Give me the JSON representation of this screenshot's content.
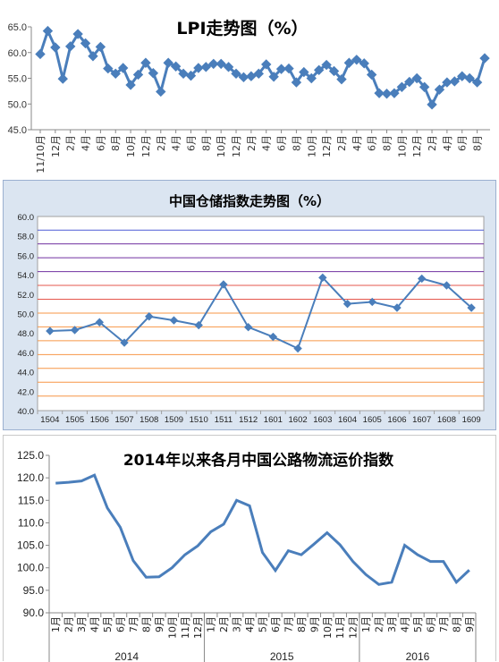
{
  "chart_data": [
    {
      "type": "line",
      "title": "LPI走势图（%）",
      "xlabel": "",
      "ylabel": "",
      "ylim": [
        45.0,
        65.0
      ],
      "yticks": [
        "45.0",
        "50.0",
        "55.0",
        "60.0",
        "65.0"
      ],
      "grid": false,
      "legend": "none",
      "x_tick_labels": [
        "11/10月",
        "12月",
        "2月",
        "4月",
        "6月",
        "8月",
        "10月",
        "12月",
        "2月",
        "4月",
        "6月",
        "8月",
        "10月",
        "12月",
        "2月",
        "4月",
        "6月",
        "8月",
        "10月",
        "12月",
        "2月",
        "4月",
        "6月",
        "8月",
        "10月",
        "12月",
        "2月",
        "4月",
        "6月",
        "8月"
      ],
      "series": [
        {
          "color": "#4a7ebb",
          "marker": "diamond",
          "values": [
            59.7,
            64.2,
            61.0,
            54.9,
            61.2,
            63.6,
            61.8,
            59.3,
            61.1,
            56.9,
            55.9,
            57.0,
            53.7,
            55.7,
            58.0,
            56.0,
            52.4,
            58.0,
            57.3,
            55.9,
            55.5,
            57.0,
            57.2,
            57.8,
            57.8,
            57.2,
            55.9,
            55.2,
            55.4,
            55.9,
            57.7,
            55.3,
            56.8,
            56.9,
            54.2,
            56.2,
            55.0,
            56.6,
            57.6,
            56.4,
            54.8,
            58.0,
            58.6,
            57.9,
            55.7,
            52.1,
            52.0,
            52.1,
            53.3,
            54.3,
            55.0,
            53.3,
            49.9,
            52.8,
            54.2,
            54.4,
            55.4,
            55.0,
            54.2,
            58.9
          ]
        }
      ]
    },
    {
      "type": "line",
      "title": "中国仓储指数走势图（%）",
      "xlabel": "",
      "ylabel": "",
      "ylim": [
        40.0,
        60.0
      ],
      "yticks": [
        "40.0",
        "42.0",
        "44.0",
        "46.0",
        "48.0",
        "50.0",
        "52.0",
        "54.0",
        "56.0",
        "58.0",
        "60.0"
      ],
      "grid": true,
      "grid_colors": [
        "#f79646",
        "#f79646",
        "#f79646",
        "#f79646",
        "#f79646",
        "#f79646",
        "#f79646",
        "#e5574d",
        "#e5574d",
        "#7030a0",
        "#7030a0",
        "#7030a0",
        "#4f5bd5",
        "#4f5bd5"
      ],
      "legend": "none",
      "categories": [
        "1504",
        "1505",
        "1506",
        "1507",
        "1508",
        "1509",
        "1510",
        "1511",
        "1512",
        "1601",
        "1602",
        "1603",
        "1604",
        "1605",
        "1606",
        "1607",
        "1608",
        "1609"
      ],
      "series": [
        {
          "color": "#4a7ebb",
          "marker": "diamond",
          "values": [
            48.2,
            48.3,
            49.1,
            47.0,
            49.7,
            49.3,
            48.8,
            53.0,
            48.6,
            47.6,
            46.4,
            53.7,
            51.0,
            51.2,
            50.6,
            53.6,
            52.9,
            50.6
          ]
        }
      ]
    },
    {
      "type": "line",
      "title": "2014年以来各月中国公路物流运价指数",
      "xlabel": "",
      "ylabel": "",
      "ylim": [
        90.0,
        125.0
      ],
      "yticks": [
        "90.0",
        "95.0",
        "100.0",
        "105.0",
        "110.0",
        "115.0",
        "120.0",
        "125.0"
      ],
      "grid": false,
      "legend": "none",
      "categories": [
        "1月",
        "2月",
        "3月",
        "4月",
        "5月",
        "6月",
        "7月",
        "8月",
        "9月",
        "10月",
        "11月",
        "12月",
        "1月",
        "2月",
        "3月",
        "4月",
        "5月",
        "6月",
        "7月",
        "8月",
        "9月",
        "10月",
        "11月",
        "12月",
        "1月",
        "2月",
        "3月",
        "4月",
        "5月",
        "6月",
        "7月",
        "8月",
        "9月"
      ],
      "year_labels": [
        "2014",
        "2015",
        "2016"
      ],
      "series": [
        {
          "color": "#4a7ebb",
          "values": [
            118.8,
            119.0,
            119.3,
            120.6,
            113.3,
            109.0,
            101.6,
            97.9,
            98.0,
            100.0,
            102.9,
            104.9,
            108.0,
            109.7,
            115.0,
            113.8,
            103.4,
            99.4,
            103.8,
            102.9,
            105.3,
            107.8,
            105.1,
            101.4,
            98.5,
            96.3,
            96.8,
            105.0,
            102.9,
            101.4,
            101.4,
            96.8,
            99.5
          ]
        }
      ]
    }
  ]
}
